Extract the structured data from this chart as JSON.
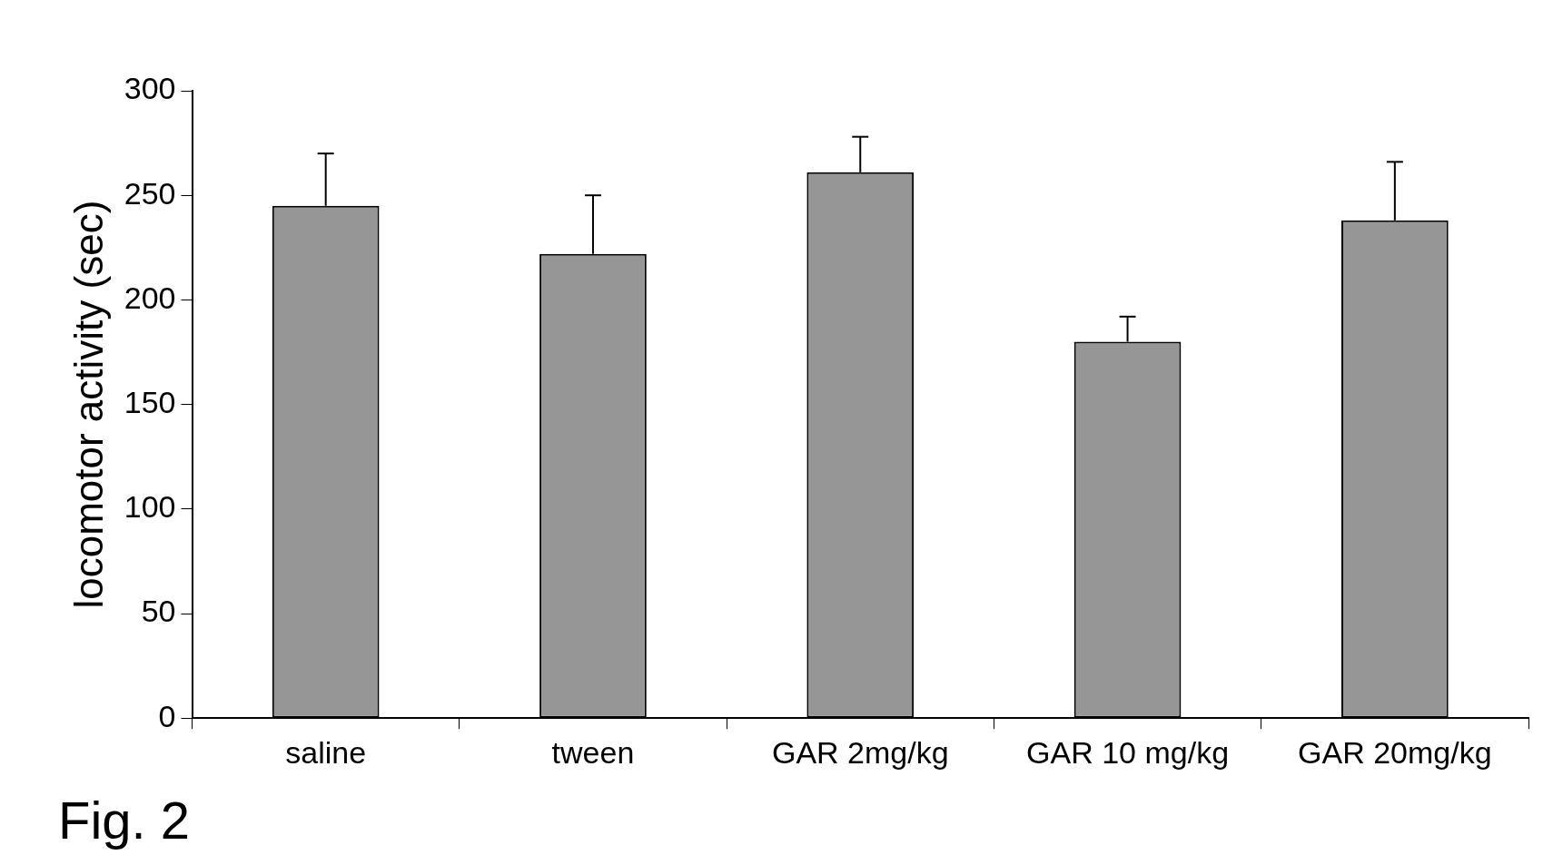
{
  "chart_data": {
    "type": "bar",
    "ylabel": "locomotor activity (sec)",
    "categories": [
      "saline",
      "tween",
      "GAR 2mg/kg",
      "GAR 10 mg/kg",
      "GAR 20mg/kg"
    ],
    "values": [
      245,
      222,
      261,
      180,
      238
    ],
    "errors": [
      [
        245,
        270
      ],
      [
        222,
        250
      ],
      [
        261,
        278
      ],
      [
        180,
        192
      ],
      [
        238,
        266
      ]
    ],
    "color": "#969696",
    "ylim": [
      0,
      300
    ],
    "yticks": [
      0,
      50,
      100,
      150,
      200,
      250,
      300
    ],
    "annotations": [
      "Fig. 2"
    ]
  }
}
